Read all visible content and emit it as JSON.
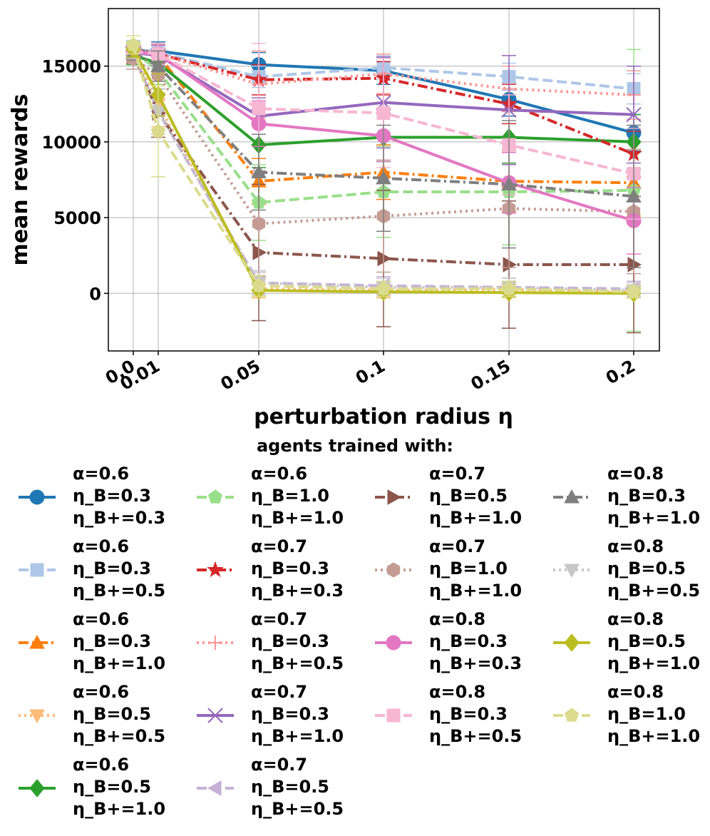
{
  "chart_data": {
    "type": "line",
    "xlabel": "perturbation radius η",
    "ylabel": "mean rewards",
    "x": [
      0.0,
      0.01,
      0.05,
      0.1,
      0.15,
      0.2
    ],
    "x_tick_labels": [
      "0.0",
      "0.01",
      "0.05",
      "0.1",
      "0.15",
      "0.2"
    ],
    "y_ticks": [
      0,
      5000,
      10000,
      15000
    ],
    "y_tick_labels": [
      "0",
      "5000",
      "10000",
      "15000"
    ],
    "ylim": [
      -3800,
      18800
    ],
    "grid": true,
    "legend_title": "agents trained with:",
    "legend_placement": "below",
    "series": [
      {
        "alpha": "α=0.6",
        "eta_b": "η_B=0.3",
        "eta_bp": "η_B+=0.3",
        "color": "#1f77b4",
        "marker": "circle",
        "dash": "solid",
        "values": [
          16000,
          16000,
          15100,
          14700,
          12800,
          10600
        ],
        "err": [
          500,
          600,
          800,
          900,
          1100,
          1200
        ]
      },
      {
        "alpha": "α=0.6",
        "eta_b": "η_B=0.3",
        "eta_bp": "η_B+=0.5",
        "color": "#aec7e8",
        "marker": "square",
        "dash": "dashed",
        "values": [
          16200,
          15900,
          14300,
          14900,
          14300,
          13500
        ],
        "err": [
          500,
          600,
          700,
          800,
          900,
          1000
        ]
      },
      {
        "alpha": "α=0.6",
        "eta_b": "η_B=0.3",
        "eta_bp": "η_B+=1.0",
        "color": "#ff7f0e",
        "marker": "triangle-up",
        "dash": "dashdot",
        "values": [
          16100,
          15700,
          7400,
          8000,
          7400,
          7300
        ],
        "err": [
          500,
          700,
          1500,
          1800,
          2000,
          2200
        ]
      },
      {
        "alpha": "α=0.6",
        "eta_b": "η_B=0.5",
        "eta_bp": "η_B+=0.5",
        "color": "#ffbb78",
        "marker": "triangle-down",
        "dash": "dotted",
        "values": [
          15900,
          12500,
          300,
          200,
          250,
          100
        ],
        "err": [
          600,
          1500,
          600,
          500,
          500,
          400
        ]
      },
      {
        "alpha": "α=0.6",
        "eta_b": "η_B=0.5",
        "eta_bp": "η_B+=1.0",
        "color": "#2ca02c",
        "marker": "diamond",
        "dash": "solid",
        "values": [
          15700,
          15200,
          9800,
          10300,
          10300,
          10000
        ],
        "err": [
          600,
          800,
          1500,
          1600,
          1700,
          1800
        ]
      },
      {
        "alpha": "α=0.6",
        "eta_b": "η_B=1.0",
        "eta_bp": "η_B+=1.0",
        "color": "#98df8a",
        "marker": "pentagon",
        "dash": "dashed",
        "values": [
          16000,
          14700,
          6000,
          6700,
          6700,
          6800
        ],
        "err": [
          500,
          900,
          2500,
          3000,
          3500,
          9300
        ]
      },
      {
        "alpha": "α=0.7",
        "eta_b": "η_B=0.3",
        "eta_bp": "η_B+=0.3",
        "color": "#d62728",
        "marker": "star",
        "dash": "dashdot",
        "values": [
          16100,
          15800,
          14100,
          14200,
          12500,
          9200
        ],
        "err": [
          500,
          600,
          1000,
          1100,
          1300,
          1500
        ]
      },
      {
        "alpha": "α=0.7",
        "eta_b": "η_B=0.3",
        "eta_bp": "η_B+=0.5",
        "color": "#ff9896",
        "marker": "plus",
        "dash": "dotted",
        "values": [
          16100,
          15800,
          13800,
          14500,
          13500,
          13100
        ],
        "err": [
          500,
          700,
          2200,
          1300,
          1500,
          1600
        ]
      },
      {
        "alpha": "α=0.7",
        "eta_b": "η_B=0.3",
        "eta_bp": "η_B+=1.0",
        "color": "#9467bd",
        "marker": "x",
        "dash": "solid",
        "values": [
          15900,
          15700,
          11700,
          12600,
          12100,
          11800
        ],
        "err": [
          500,
          700,
          1200,
          3000,
          3600,
          3200
        ]
      },
      {
        "alpha": "α=0.7",
        "eta_b": "η_B=0.5",
        "eta_bp": "η_B+=0.5",
        "color": "#c5b0d5",
        "marker": "triangle-left",
        "dash": "dashed",
        "values": [
          15800,
          12000,
          700,
          500,
          400,
          300
        ],
        "err": [
          600,
          1500,
          700,
          600,
          600,
          500
        ]
      },
      {
        "alpha": "α=0.7",
        "eta_b": "η_B=0.5",
        "eta_bp": "η_B+=1.0",
        "color": "#8c564b",
        "marker": "triangle-right",
        "dash": "dashdot",
        "values": [
          15800,
          11900,
          2700,
          2300,
          1900,
          1900
        ],
        "err": [
          600,
          1600,
          4500,
          4500,
          4200,
          4500
        ]
      },
      {
        "alpha": "α=0.7",
        "eta_b": "η_B=1.0",
        "eta_bp": "η_B+=1.0",
        "color": "#c49c94",
        "marker": "hexagon",
        "dash": "dotted",
        "values": [
          15500,
          14400,
          4600,
          5100,
          5600,
          5400
        ],
        "err": [
          700,
          1200,
          3500,
          3700,
          3900,
          4100
        ]
      },
      {
        "alpha": "α=0.8",
        "eta_b": "η_B=0.3",
        "eta_bp": "η_B+=0.3",
        "color": "#e377c2",
        "marker": "circle",
        "dash": "solid",
        "values": [
          15900,
          15800,
          11200,
          10400,
          7300,
          4800
        ],
        "err": [
          500,
          600,
          1500,
          1700,
          2000,
          2200
        ]
      },
      {
        "alpha": "α=0.8",
        "eta_b": "η_B=0.3",
        "eta_bp": "η_B+=0.5",
        "color": "#f7b6d2",
        "marker": "square",
        "dash": "dashed",
        "values": [
          16000,
          15800,
          12200,
          11900,
          9800,
          7900
        ],
        "err": [
          500,
          700,
          4300,
          3600,
          3300,
          3000
        ]
      },
      {
        "alpha": "α=0.8",
        "eta_b": "η_B=0.3",
        "eta_bp": "η_B+=1.0",
        "color": "#7f7f7f",
        "marker": "triangle-up",
        "dash": "dashdot",
        "values": [
          15900,
          15000,
          8000,
          7600,
          7200,
          6400
        ],
        "err": [
          500,
          1000,
          2500,
          3500,
          4200,
          4700
        ]
      },
      {
        "alpha": "α=0.8",
        "eta_b": "η_B=0.5",
        "eta_bp": "η_B+=0.5",
        "color": "#c7c7c7",
        "marker": "triangle-down",
        "dash": "dotted",
        "values": [
          16000,
          12000,
          700,
          400,
          400,
          200
        ],
        "err": [
          500,
          1500,
          800,
          600,
          600,
          500
        ]
      },
      {
        "alpha": "α=0.8",
        "eta_b": "η_B=0.5",
        "eta_bp": "η_B+=1.0",
        "color": "#bcbd22",
        "marker": "diamond",
        "dash": "solid",
        "values": [
          16100,
          13100,
          200,
          100,
          50,
          0
        ],
        "err": [
          500,
          1400,
          400,
          300,
          300,
          300
        ]
      },
      {
        "alpha": "α=0.8",
        "eta_b": "η_B=1.0",
        "eta_bp": "η_B+=1.0",
        "color": "#dbdb8d",
        "marker": "pentagon",
        "dash": "dashed",
        "values": [
          16400,
          10700,
          500,
          300,
          300,
          100
        ],
        "err": [
          600,
          3000,
          700,
          500,
          500,
          400
        ]
      }
    ]
  }
}
